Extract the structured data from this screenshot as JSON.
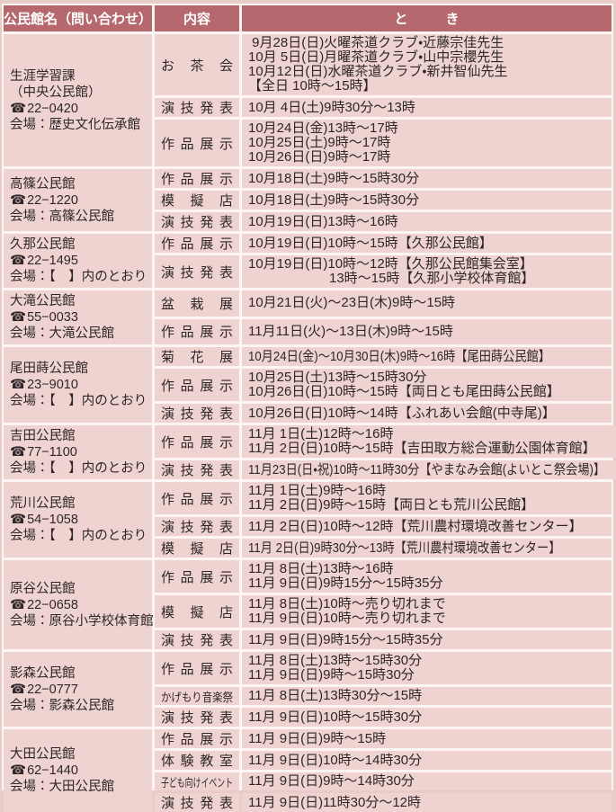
{
  "header": {
    "col1": "公民館名（問い合わせ）",
    "col2": "内容",
    "col3": "と　き"
  },
  "colors": {
    "header_bg": "#b5696e",
    "header_text": "#ffffff",
    "cell_bg": "#efd3d0",
    "border": "#fcf5f3",
    "page_bg": "#e7ccc8",
    "text": "#2e2628"
  },
  "icons": {
    "phone": "☎"
  },
  "blocks": [
    {
      "name_lines": [
        "生涯学習課",
        "（中央公民館）"
      ],
      "phone": "22−0420",
      "venue": "会場：歴史文化伝承館",
      "rows": [
        {
          "label": "お茶会",
          "lines": [
            " 9月28日(日)火曜茶道クラブ・近藤宗佳先生",
            "10月 5日(日)月曜茶道クラブ・山中宗櫻先生",
            "10月12日(日)水曜茶道クラブ・新井智仙先生",
            "【全日 10時〜15時】"
          ]
        },
        {
          "label": "演技発表",
          "lines": [
            "10月 4日(土)9時30分〜13時"
          ]
        },
        {
          "label": "作品展示",
          "lines": [
            "10月24日(金)13時〜17時",
            "10月25日(土)9時〜17時",
            "10月26日(日)9時〜17時"
          ]
        }
      ]
    },
    {
      "name_lines": [
        "高篠公民館"
      ],
      "phone": "22−1220",
      "venue": "会場：高篠公民館",
      "rows": [
        {
          "label": "作品展示",
          "lines": [
            "10月18日(土)9時〜15時30分"
          ]
        },
        {
          "label": "模擬店",
          "lines": [
            "10月18日(土)9時〜15時30分"
          ]
        },
        {
          "label": "演技発表",
          "lines": [
            "10月19日(日)13時〜16時"
          ]
        }
      ]
    },
    {
      "name_lines": [
        "久那公民館"
      ],
      "phone": "22−1495",
      "venue": "会場：【　】内のとおり",
      "rows": [
        {
          "label": "作品展示",
          "lines": [
            "10月19日(日)10時〜15時【久那公民館】"
          ]
        },
        {
          "label": "演技発表",
          "lines": [
            "10月19日(日)10時〜12時【久那公民館集会室】",
            "　　　　　　13時〜15時【久那小学校体育館】"
          ]
        }
      ]
    },
    {
      "name_lines": [
        "大滝公民館"
      ],
      "phone": "55−0033",
      "venue": "会場：大滝公民館",
      "rows": [
        {
          "label": "盆栽展",
          "lines": [
            "10月21日(火)〜23日(木)9時〜15時"
          ]
        },
        {
          "label": "作品展示",
          "lines": [
            "11月11日(火)〜13日(木)9時〜15時"
          ]
        }
      ]
    },
    {
      "name_lines": [
        "尾田蒔公民館"
      ],
      "phone": "23−9010",
      "venue": "会場：【　】内のとおり",
      "rows": [
        {
          "label": "菊花展",
          "lines": [
            "10月24日(金)〜10月30日(木)9時〜16時【尾田蒔公民館】"
          ]
        },
        {
          "label": "作品展示",
          "lines": [
            "10月25日(土)13時〜15時30分",
            "10月26日(日)10時〜15時【両日とも尾田蒔公民館】"
          ]
        },
        {
          "label": "演技発表",
          "lines": [
            "10月26日(日)10時〜14時【ふれあい会館(中寺尾)】"
          ]
        }
      ]
    },
    {
      "name_lines": [
        "吉田公民館"
      ],
      "phone": "77−1100",
      "venue": "会場：【　】内のとおり",
      "rows": [
        {
          "label": "作品展示",
          "lines": [
            "11月 1日(土)12時〜16時",
            "11月 2日(日)10時〜15時【吉田取方総合運動公園体育館】"
          ]
        },
        {
          "label": "演技発表",
          "lines": [
            "11月23日(日・祝)10時〜11時30分【やまなみ会館(よいとこ祭会場)】"
          ]
        }
      ]
    },
    {
      "name_lines": [
        "荒川公民館"
      ],
      "phone": "54−1058",
      "venue": "会場：【　】内のとおり",
      "rows": [
        {
          "label": "作品展示",
          "lines": [
            "11月 1日(土)9時〜16時",
            "11月 2日(日)9時〜15時【両日とも荒川公民館】"
          ]
        },
        {
          "label": "演技発表",
          "lines": [
            "11月 2日(日)10時〜12時【荒川農村環境改善センター】"
          ]
        },
        {
          "label": "模擬店",
          "lines": [
            "11月 2日(日)9時30分〜13時【荒川農村環境改善センター】"
          ]
        }
      ]
    },
    {
      "name_lines": [
        "原谷公民館"
      ],
      "phone": "22−0658",
      "venue": "会場：原谷小学校体育館",
      "rows": [
        {
          "label": "作品展示",
          "lines": [
            "11月 8日(土)13時〜16時",
            "11月 9日(日)9時15分〜15時35分"
          ]
        },
        {
          "label": "模擬店",
          "lines": [
            "11月 8日(土)10時〜売り切れまで",
            "11月 9日(日)10時〜売り切れまで"
          ]
        },
        {
          "label": "演技発表",
          "lines": [
            "11月 9日(日)9時15分〜15時35分"
          ]
        }
      ]
    },
    {
      "name_lines": [
        "影森公民館"
      ],
      "phone": "22−0777",
      "venue": "会場：影森公民館",
      "rows": [
        {
          "label": "作品展示",
          "lines": [
            "11月 8日(土)13時〜15時30分",
            "11月 9日(日)9時〜15時30分"
          ]
        },
        {
          "label": "かげもり音楽祭",
          "lines": [
            "11月 8日(土)13時30分〜15時"
          ]
        },
        {
          "label": "演技発表",
          "lines": [
            "11月 9日(日)10時〜15時30分"
          ]
        }
      ]
    },
    {
      "name_lines": [
        "大田公民館"
      ],
      "phone": "62−1440",
      "venue": "会場：大田公民館",
      "rows": [
        {
          "label": "作品展示",
          "lines": [
            "11月 9日(日)9時〜15時"
          ]
        },
        {
          "label": "体験教室",
          "lines": [
            "11月 9日(日)10時〜14時30分"
          ]
        },
        {
          "label": "子ども向けイベント",
          "lines": [
            "11月 9日(日)9時〜14時30分"
          ]
        },
        {
          "label": "演技発表",
          "lines": [
            "11月 9日(日)11時30分〜12時"
          ]
        }
      ]
    }
  ]
}
